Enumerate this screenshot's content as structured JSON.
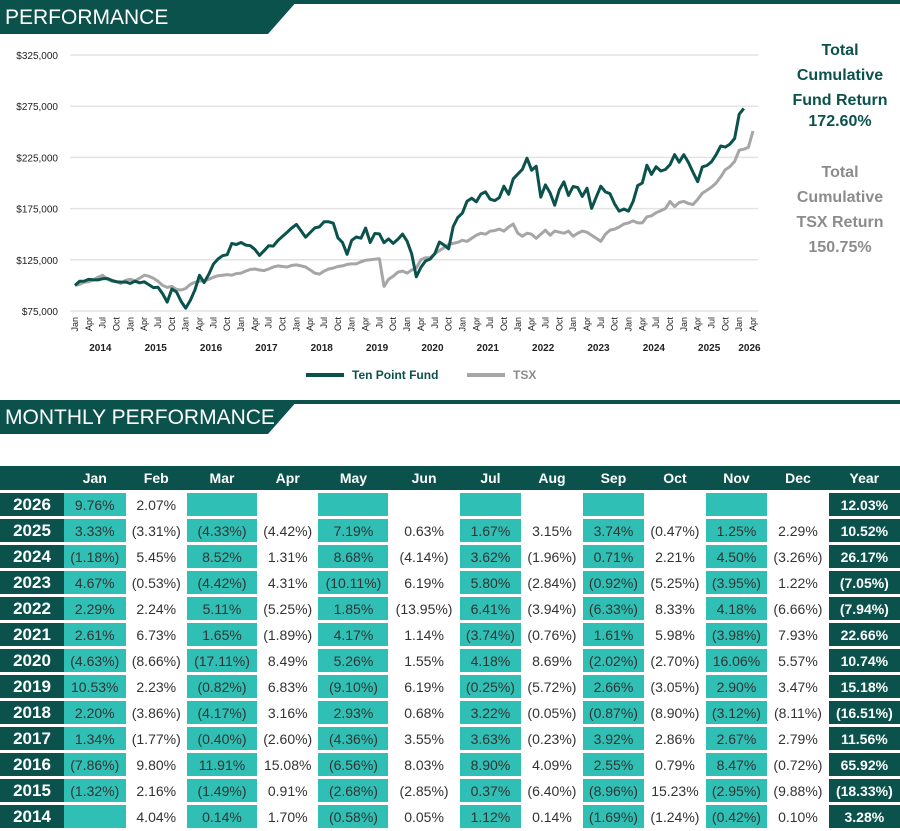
{
  "sections": {
    "performance_title": "PERFORMANCE",
    "monthly_title": "MONTHLY PERFORMANCE"
  },
  "summary": {
    "fund_label_lines": [
      "Total",
      "Cumulative",
      "Fund Return"
    ],
    "fund_value": "172.60%",
    "tsx_label_lines": [
      "Total",
      "Cumulative",
      "TSX Return"
    ],
    "tsx_value": "150.75%"
  },
  "colors": {
    "brand": "#0b524c",
    "highlight": "#2fbfb4",
    "tsx": "#a6a6a6"
  },
  "chart_data": {
    "type": "line",
    "title": "",
    "xlabel": "",
    "ylabel": "",
    "ylim": [
      75000,
      325000
    ],
    "y_ticks": [
      "$75,000",
      "$125,000",
      "$175,000",
      "$225,000",
      "$275,000",
      "$325,000"
    ],
    "y_tick_values": [
      75000,
      125000,
      175000,
      225000,
      275000,
      325000
    ],
    "x_month_ticks": [
      "Jan",
      "Apr",
      "Jul",
      "Oct"
    ],
    "x_year_labels": [
      "2014",
      "2015",
      "2016",
      "2017",
      "2018",
      "2019",
      "2020",
      "2021",
      "2022",
      "2023",
      "2024",
      "2025",
      "2026"
    ],
    "x_start": "Jan 2014",
    "x_end": "Feb 2026",
    "grid": true,
    "legend_position": "bottom",
    "start_value": 100000,
    "series": [
      {
        "name": "Ten Point Fund",
        "color": "#0b524c",
        "derived_from": "monthly_returns",
        "final_value": 272600
      },
      {
        "name": "TSX",
        "color": "#a6a6a6",
        "final_value": 250750,
        "values": [
          100000,
          101000,
          103000,
          103500,
          105500,
          108000,
          110000,
          106000,
          104000,
          103500,
          102000,
          105000,
          106000,
          104500,
          107000,
          110000,
          109000,
          107000,
          104000,
          100000,
          98000,
          99000,
          96000,
          95500,
          97000,
          101000,
          103000,
          104000,
          104500,
          106000,
          108000,
          109500,
          110000,
          110500,
          110000,
          111500,
          112000,
          114000,
          115500,
          116000,
          115000,
          114500,
          116000,
          118000,
          119000,
          118500,
          118000,
          119500,
          120000,
          119000,
          118000,
          115000,
          112000,
          111000,
          114000,
          116000,
          117000,
          118500,
          119000,
          120500,
          121000,
          121000,
          123000,
          124500,
          125000,
          125500,
          126000,
          99000,
          106000,
          109000,
          113000,
          114000,
          112000,
          115000,
          117000,
          125000,
          127000,
          127000,
          131000,
          134000,
          137000,
          140000,
          141000,
          142000,
          144000,
          143000,
          146000,
          149000,
          151000,
          150000,
          153000,
          153500,
          155000,
          153000,
          157000,
          160000,
          151000,
          148000,
          151000,
          150000,
          146000,
          150000,
          154000,
          149000,
          153000,
          152000,
          151000,
          153000,
          148000,
          151000,
          153000,
          152000,
          149000,
          146000,
          143000,
          150000,
          154000,
          155000,
          157000,
          160000,
          161000,
          163000,
          161000,
          161000,
          167000,
          168000,
          171000,
          173000,
          175000,
          182000,
          177000,
          181000,
          182000,
          180000,
          179000,
          184000,
          190000,
          193000,
          196000,
          200000,
          206000,
          213000,
          216000,
          221000,
          232000,
          233000,
          235000,
          250750
        ]
      }
    ]
  },
  "monthly": {
    "headers": [
      "",
      "Jan",
      "Feb",
      "Mar",
      "Apr",
      "May",
      "Jun",
      "Jul",
      "Aug",
      "Sep",
      "Oct",
      "Nov",
      "Dec",
      "Year"
    ],
    "rows": [
      {
        "year": "2026",
        "months": [
          "9.76%",
          "2.07%",
          "",
          "",
          "",
          "",
          "",
          "",
          "",
          "",
          "",
          ""
        ],
        "total": "12.03%"
      },
      {
        "year": "2025",
        "months": [
          "3.33%",
          "(3.31%)",
          "(4.33%)",
          "(4.42%)",
          "7.19%",
          "0.63%",
          "1.67%",
          "3.15%",
          "3.74%",
          "(0.47%)",
          "1.25%",
          "2.29%"
        ],
        "total": "10.52%"
      },
      {
        "year": "2024",
        "months": [
          "(1.18%)",
          "5.45%",
          "8.52%",
          "1.31%",
          "8.68%",
          "(4.14%)",
          "3.62%",
          "(1.96%)",
          "0.71%",
          "2.21%",
          "4.50%",
          "(3.26%)"
        ],
        "total": "26.17%"
      },
      {
        "year": "2023",
        "months": [
          "4.67%",
          "(0.53%)",
          "(4.42%)",
          "4.31%",
          "(10.11%)",
          "6.19%",
          "5.80%",
          "(2.84%)",
          "(0.92%)",
          "(5.25%)",
          "(3.95%)",
          "1.22%"
        ],
        "total": "(7.05%)"
      },
      {
        "year": "2022",
        "months": [
          "2.29%",
          "2.24%",
          "5.11%",
          "(5.25%)",
          "1.85%",
          "(13.95%)",
          "6.41%",
          "(3.94%)",
          "(6.33%)",
          "8.33%",
          "4.18%",
          "(6.66%)"
        ],
        "total": "(7.94%)"
      },
      {
        "year": "2021",
        "months": [
          "2.61%",
          "6.73%",
          "1.65%",
          "(1.89%)",
          "4.17%",
          "1.14%",
          "(3.74%)",
          "(0.76%)",
          "1.61%",
          "5.98%",
          "(3.98%)",
          "7.93%"
        ],
        "total": "22.66%"
      },
      {
        "year": "2020",
        "months": [
          "(4.63%)",
          "(8.66%)",
          "(17.11%)",
          "8.49%",
          "5.26%",
          "1.55%",
          "4.18%",
          "8.69%",
          "(2.02%)",
          "(2.70%)",
          "16.06%",
          "5.57%"
        ],
        "total": "10.74%"
      },
      {
        "year": "2019",
        "months": [
          "10.53%",
          "2.23%",
          "(0.82%)",
          "6.83%",
          "(9.10%)",
          "6.19%",
          "(0.25%)",
          "(5.72%)",
          "2.66%",
          "(3.05%)",
          "2.90%",
          "3.47%"
        ],
        "total": "15.18%"
      },
      {
        "year": "2018",
        "months": [
          "2.20%",
          "(3.86%)",
          "(4.17%)",
          "3.16%",
          "2.93%",
          "0.68%",
          "3.22%",
          "(0.05%)",
          "(0.87%)",
          "(8.90%)",
          "(3.12%)",
          "(8.11%)"
        ],
        "total": "(16.51%)"
      },
      {
        "year": "2017",
        "months": [
          "1.34%",
          "(1.77%)",
          "(0.40%)",
          "(2.60%)",
          "(4.36%)",
          "3.55%",
          "3.63%",
          "(0.23%)",
          "3.92%",
          "2.86%",
          "2.67%",
          "2.79%"
        ],
        "total": "11.56%"
      },
      {
        "year": "2016",
        "months": [
          "(7.86%)",
          "9.80%",
          "11.91%",
          "15.08%",
          "(6.56%)",
          "8.03%",
          "8.90%",
          "4.09%",
          "2.55%",
          "0.79%",
          "8.47%",
          "(0.72%)"
        ],
        "total": "65.92%"
      },
      {
        "year": "2015",
        "months": [
          "(1.32%)",
          "2.16%",
          "(1.49%)",
          "0.91%",
          "(2.68%)",
          "(2.85%)",
          "0.37%",
          "(6.40%)",
          "(8.96%)",
          "15.23%",
          "(2.95%)",
          "(9.88%)"
        ],
        "total": "(18.33%)"
      },
      {
        "year": "2014",
        "months": [
          "",
          "4.04%",
          "0.14%",
          "1.70%",
          "(0.58%)",
          "0.05%",
          "1.12%",
          "0.14%",
          "(1.69%)",
          "(1.24%)",
          "(0.42%)",
          "0.10%"
        ],
        "total": "3.28%"
      }
    ]
  }
}
